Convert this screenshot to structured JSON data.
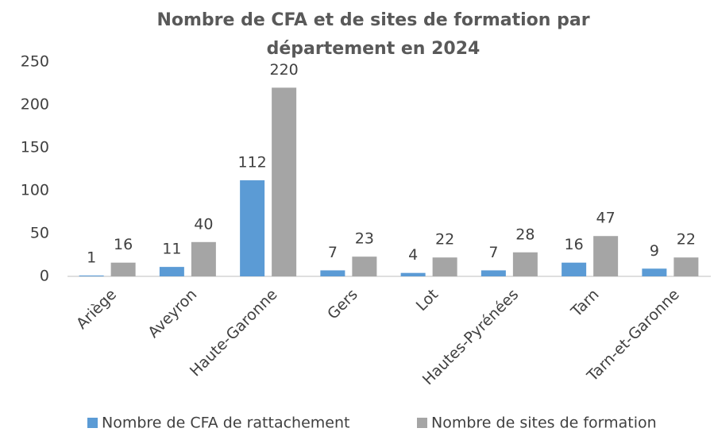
{
  "chart_data": {
    "type": "bar",
    "title": "Nombre de CFA et de sites de formation par département en 2024",
    "categories": [
      "Ariège",
      "Aveyron",
      "Haute-Garonne",
      "Gers",
      "Lot",
      "Hautes-Pyrénées",
      "Tarn",
      "Tarn-et-Garonne"
    ],
    "series": [
      {
        "name": "Nombre de CFA de rattachement",
        "color": "#5b9bd5",
        "values": [
          1,
          11,
          112,
          7,
          4,
          7,
          16,
          9
        ]
      },
      {
        "name": "Nombre de sites de formation",
        "color": "#a5a5a5",
        "values": [
          16,
          40,
          220,
          23,
          22,
          28,
          47,
          22
        ]
      }
    ],
    "ylim": [
      0,
      250
    ],
    "yticks": [
      0,
      50,
      100,
      150,
      200,
      250
    ],
    "grid": false,
    "legend": "bottom"
  }
}
